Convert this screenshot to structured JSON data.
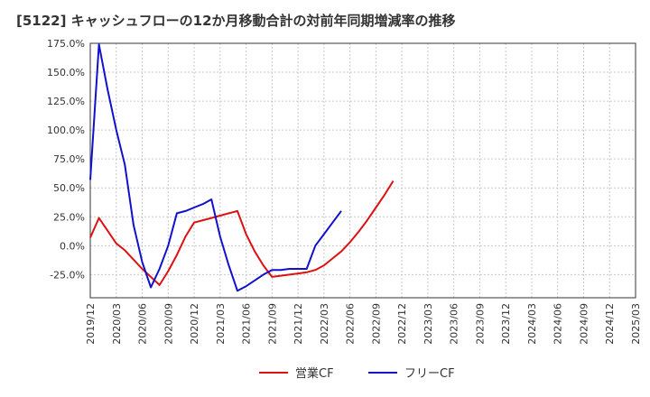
{
  "chart_data": {
    "type": "line",
    "title": "[5122]  キャッシュフローの12か月移動合計の対前年同期増減率の推移",
    "xlabel": "",
    "ylabel": "",
    "ylim": [
      -45,
      175
    ],
    "y_ticks": [
      -25,
      0,
      25,
      50,
      75,
      100,
      125,
      150,
      175
    ],
    "y_tick_labels": [
      "-25.0%",
      "0.0%",
      "25.0%",
      "50.0%",
      "75.0%",
      "100.0%",
      "125.0%",
      "150.0%",
      "175.0%"
    ],
    "x_tick_labels": [
      "2019/12",
      "2020/03",
      "2020/06",
      "2020/09",
      "2020/12",
      "2021/03",
      "2021/06",
      "2021/09",
      "2021/12",
      "2022/03",
      "2022/06",
      "2022/09",
      "2022/12",
      "2023/03",
      "2023/06",
      "2023/09",
      "2023/12",
      "2024/03",
      "2024/06",
      "2024/09",
      "2024/12",
      "2025/03"
    ],
    "grid": true,
    "legend_position": "bottom-center",
    "series": [
      {
        "name": "営業CF",
        "color": "#dd1111",
        "points": [
          [
            0,
            7
          ],
          [
            1,
            24
          ],
          [
            2,
            13
          ],
          [
            3,
            2
          ],
          [
            4,
            -4
          ],
          [
            5,
            -12
          ],
          [
            6,
            -20
          ],
          [
            7,
            -27
          ],
          [
            8,
            -34
          ],
          [
            9,
            -22
          ],
          [
            10,
            -8
          ],
          [
            11,
            8
          ],
          [
            12,
            20
          ],
          [
            13,
            22
          ],
          [
            14,
            24
          ],
          [
            15,
            26
          ],
          [
            16,
            28
          ],
          [
            17,
            30
          ],
          [
            18,
            10
          ],
          [
            19,
            -5
          ],
          [
            20,
            -17
          ],
          [
            21,
            -27
          ],
          [
            22,
            -26
          ],
          [
            23,
            -25
          ],
          [
            24,
            -24
          ],
          [
            25,
            -23
          ],
          [
            26,
            -21
          ],
          [
            27,
            -17
          ],
          [
            28,
            -11
          ],
          [
            29,
            -5
          ],
          [
            30,
            3
          ],
          [
            31,
            12
          ],
          [
            32,
            22
          ],
          [
            33,
            33
          ],
          [
            34,
            44
          ],
          [
            35,
            56
          ]
        ]
      },
      {
        "name": "フリーCF",
        "color": "#1111cc",
        "points": [
          [
            0,
            57
          ],
          [
            1,
            174
          ],
          [
            2,
            135
          ],
          [
            3,
            100
          ],
          [
            4,
            70
          ],
          [
            5,
            18
          ],
          [
            6,
            -14
          ],
          [
            7,
            -36
          ],
          [
            8,
            -20
          ],
          [
            9,
            0
          ],
          [
            10,
            28
          ],
          [
            11,
            30
          ],
          [
            12,
            33
          ],
          [
            13,
            36
          ],
          [
            14,
            40
          ],
          [
            15,
            8
          ],
          [
            16,
            -17
          ],
          [
            17,
            -39
          ],
          [
            18,
            -35
          ],
          [
            19,
            -30
          ],
          [
            20,
            -25
          ],
          [
            21,
            -21
          ],
          [
            22,
            -21
          ],
          [
            23,
            -20
          ],
          [
            24,
            -20
          ],
          [
            25,
            -20
          ],
          [
            26,
            0
          ],
          [
            27,
            10
          ],
          [
            28,
            20
          ],
          [
            29,
            30
          ]
        ]
      }
    ],
    "x_point_step_months": 1,
    "x_point_origin": "2019/12"
  }
}
